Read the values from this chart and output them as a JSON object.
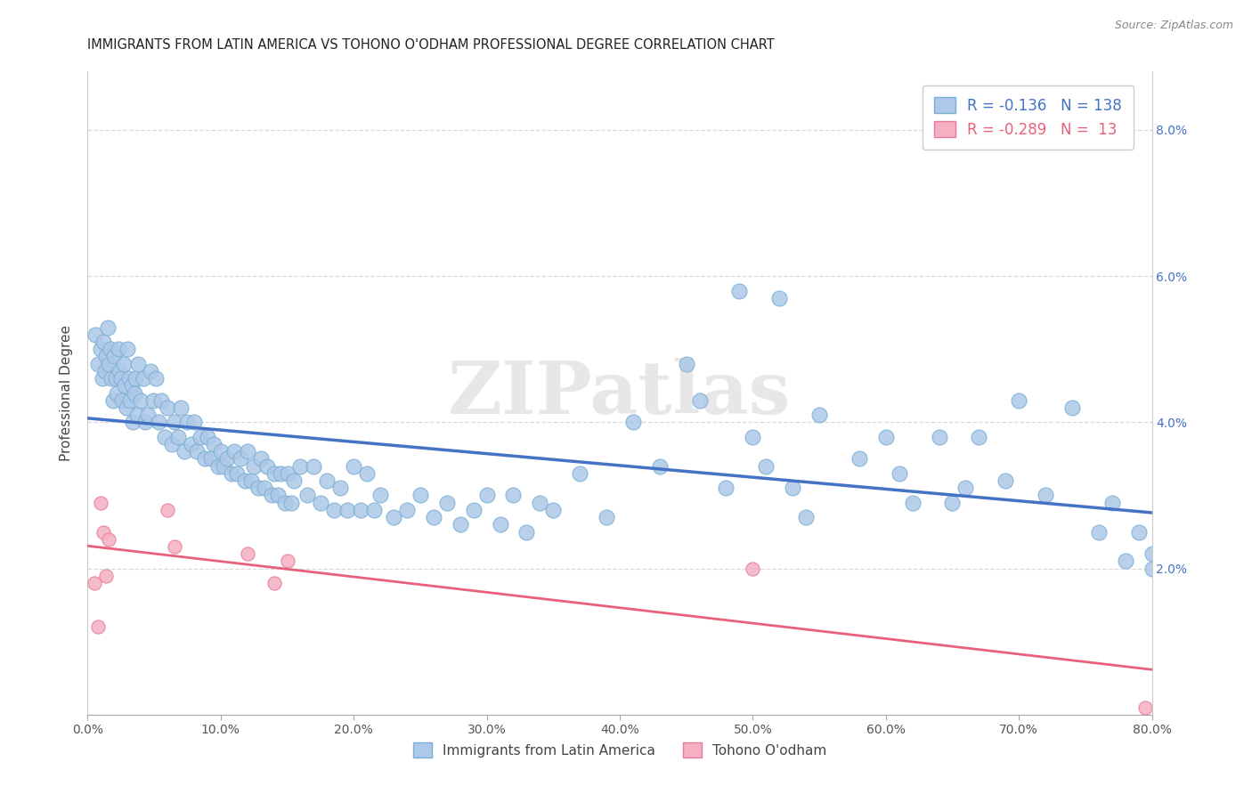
{
  "title": "IMMIGRANTS FROM LATIN AMERICA VS TOHONO O'ODHAM PROFESSIONAL DEGREE CORRELATION CHART",
  "source": "Source: ZipAtlas.com",
  "ylabel_label": "Professional Degree",
  "blue_R": -0.136,
  "blue_N": 138,
  "pink_R": -0.289,
  "pink_N": 13,
  "blue_color": "#adc8e8",
  "blue_edge": "#7aafd4",
  "pink_color": "#f5b0c2",
  "pink_edge": "#e8799a",
  "blue_line_color": "#4472c4",
  "pink_line_color": "#e8607a",
  "watermark": "ZIPatlas",
  "legend_label_blue": "Immigrants from Latin America",
  "legend_label_pink": "Tohono O'odham",
  "xlim": [
    0.0,
    0.8
  ],
  "ylim": [
    0.0,
    0.088
  ],
  "xtick_positions": [
    0.0,
    0.1,
    0.2,
    0.3,
    0.4,
    0.5,
    0.6,
    0.7,
    0.8
  ],
  "xtick_labels": [
    "0.0%",
    "10.0%",
    "20.0%",
    "30.0%",
    "40.0%",
    "50.0%",
    "60.0%",
    "70.0%",
    "80.0%"
  ],
  "ytick_positions": [
    0.0,
    0.02,
    0.04,
    0.06,
    0.08
  ],
  "ytick_right_labels": [
    "",
    "2.0%",
    "4.0%",
    "6.0%",
    "8.0%"
  ],
  "blue_x": [
    0.006,
    0.008,
    0.01,
    0.011,
    0.012,
    0.013,
    0.014,
    0.015,
    0.016,
    0.017,
    0.018,
    0.019,
    0.02,
    0.021,
    0.022,
    0.023,
    0.024,
    0.025,
    0.026,
    0.027,
    0.028,
    0.029,
    0.03,
    0.031,
    0.032,
    0.033,
    0.034,
    0.035,
    0.036,
    0.037,
    0.038,
    0.04,
    0.042,
    0.043,
    0.045,
    0.047,
    0.049,
    0.051,
    0.053,
    0.055,
    0.058,
    0.06,
    0.063,
    0.065,
    0.068,
    0.07,
    0.073,
    0.075,
    0.078,
    0.08,
    0.082,
    0.085,
    0.088,
    0.09,
    0.093,
    0.095,
    0.098,
    0.1,
    0.102,
    0.105,
    0.108,
    0.11,
    0.112,
    0.115,
    0.118,
    0.12,
    0.123,
    0.125,
    0.128,
    0.13,
    0.133,
    0.135,
    0.138,
    0.14,
    0.143,
    0.145,
    0.148,
    0.15,
    0.153,
    0.155,
    0.16,
    0.165,
    0.17,
    0.175,
    0.18,
    0.185,
    0.19,
    0.195,
    0.2,
    0.205,
    0.21,
    0.215,
    0.22,
    0.23,
    0.24,
    0.25,
    0.26,
    0.27,
    0.28,
    0.29,
    0.3,
    0.31,
    0.32,
    0.33,
    0.34,
    0.35,
    0.37,
    0.39,
    0.41,
    0.43,
    0.45,
    0.46,
    0.48,
    0.49,
    0.5,
    0.51,
    0.52,
    0.53,
    0.54,
    0.55,
    0.58,
    0.6,
    0.61,
    0.62,
    0.64,
    0.65,
    0.66,
    0.67,
    0.69,
    0.7,
    0.72,
    0.74,
    0.76,
    0.77,
    0.78,
    0.79,
    0.8,
    0.8
  ],
  "blue_y": [
    0.052,
    0.048,
    0.05,
    0.046,
    0.051,
    0.047,
    0.049,
    0.053,
    0.048,
    0.05,
    0.046,
    0.043,
    0.049,
    0.046,
    0.044,
    0.05,
    0.047,
    0.046,
    0.043,
    0.048,
    0.045,
    0.042,
    0.05,
    0.046,
    0.043,
    0.045,
    0.04,
    0.044,
    0.046,
    0.041,
    0.048,
    0.043,
    0.046,
    0.04,
    0.041,
    0.047,
    0.043,
    0.046,
    0.04,
    0.043,
    0.038,
    0.042,
    0.037,
    0.04,
    0.038,
    0.042,
    0.036,
    0.04,
    0.037,
    0.04,
    0.036,
    0.038,
    0.035,
    0.038,
    0.035,
    0.037,
    0.034,
    0.036,
    0.034,
    0.035,
    0.033,
    0.036,
    0.033,
    0.035,
    0.032,
    0.036,
    0.032,
    0.034,
    0.031,
    0.035,
    0.031,
    0.034,
    0.03,
    0.033,
    0.03,
    0.033,
    0.029,
    0.033,
    0.029,
    0.032,
    0.034,
    0.03,
    0.034,
    0.029,
    0.032,
    0.028,
    0.031,
    0.028,
    0.034,
    0.028,
    0.033,
    0.028,
    0.03,
    0.027,
    0.028,
    0.03,
    0.027,
    0.029,
    0.026,
    0.028,
    0.03,
    0.026,
    0.03,
    0.025,
    0.029,
    0.028,
    0.033,
    0.027,
    0.04,
    0.034,
    0.048,
    0.043,
    0.031,
    0.058,
    0.038,
    0.034,
    0.057,
    0.031,
    0.027,
    0.041,
    0.035,
    0.038,
    0.033,
    0.029,
    0.038,
    0.029,
    0.031,
    0.038,
    0.032,
    0.043,
    0.03,
    0.042,
    0.025,
    0.029,
    0.021,
    0.025,
    0.022,
    0.02
  ],
  "pink_x": [
    0.005,
    0.008,
    0.01,
    0.012,
    0.014,
    0.016,
    0.06,
    0.065,
    0.12,
    0.14,
    0.15,
    0.5,
    0.795
  ],
  "pink_y": [
    0.018,
    0.012,
    0.029,
    0.025,
    0.019,
    0.024,
    0.028,
    0.023,
    0.022,
    0.018,
    0.021,
    0.02,
    0.001
  ],
  "blue_marker_size": 150,
  "pink_marker_size": 120,
  "grid_color": "#d8d8d8",
  "title_fontsize": 10.5,
  "tick_fontsize": 10,
  "right_tick_color": "#4472c4"
}
